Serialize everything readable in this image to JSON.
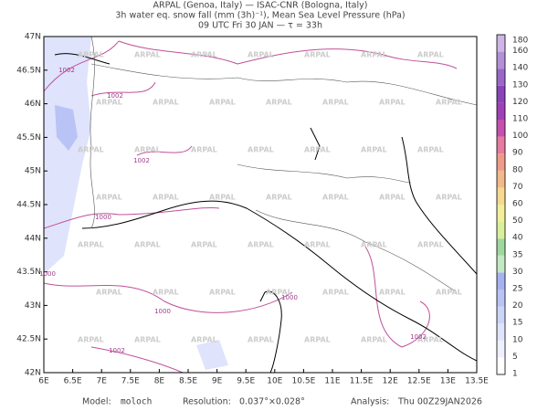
{
  "header": {
    "lines": [
      "ARPAL (Genoa, Italy)  —  ISAC-CNR (Bologna, Italy)",
      "3h water eq. snow fall (mm (3h)⁻¹), Mean Sea Level Pressure (hPa)",
      "09 UTC Fri 30 JAN  —  τ = 33h"
    ]
  },
  "map": {
    "lat_labels": [
      "47N",
      "46.5N",
      "46N",
      "45.5N",
      "45N",
      "44.5N",
      "44N",
      "43.5N",
      "43N",
      "42.5N",
      "42N"
    ],
    "lon_labels": [
      "6E",
      "6.5E",
      "7E",
      "7.5E",
      "8E",
      "8.5E",
      "9E",
      "9.5E",
      "10E",
      "10.5E",
      "11E",
      "11.5E",
      "12E",
      "12.5E",
      "13E",
      "13.5E"
    ],
    "isobar_labels": [
      "1002",
      "1002",
      "1002",
      "1000",
      "1000",
      "1000",
      "1000",
      "1002",
      "1002"
    ],
    "watermark": "ARPAL"
  },
  "colorbar": {
    "levels": [
      1,
      5,
      10,
      15,
      20,
      25,
      30,
      35,
      40,
      50,
      60,
      70,
      80,
      90,
      100,
      110,
      120,
      130,
      140,
      160,
      180
    ]
  },
  "footer": {
    "model_label": "Model:",
    "model": "moloch",
    "resolution_label": "Resolution:",
    "resolution": "0.037°×0.028°",
    "analysis_label": "Analysis:",
    "analysis": "Thu 00Z29JAN2026"
  }
}
